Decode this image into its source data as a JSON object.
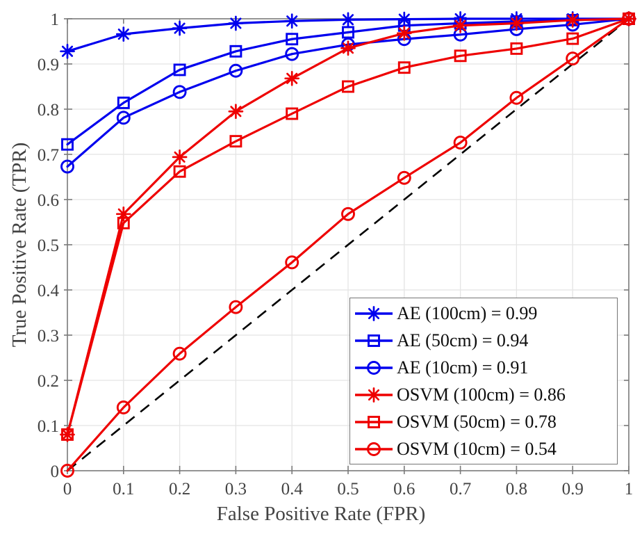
{
  "chart_data": {
    "type": "line",
    "title": "",
    "xlabel": "False Positive Rate (FPR)",
    "ylabel": "True Positive Rate (TPR)",
    "xlim": [
      0,
      1
    ],
    "ylim": [
      0,
      1
    ],
    "grid": true,
    "legend_position": "lower-right",
    "x": [
      0,
      0.1,
      0.2,
      0.3,
      0.4,
      0.5,
      0.6,
      0.7,
      0.8,
      0.9,
      1.0
    ],
    "x_tick_labels": [
      "0",
      "0.1",
      "0.2",
      "0.3",
      "0.4",
      "0.5",
      "0.6",
      "0.7",
      "0.8",
      "0.9",
      "1"
    ],
    "y_tick_labels": [
      "0",
      "0.1",
      "0.2",
      "0.3",
      "0.4",
      "0.5",
      "0.6",
      "0.7",
      "0.8",
      "0.9",
      "1"
    ],
    "series": [
      {
        "name": "AE (100cm) = 0.99",
        "auc": 0.99,
        "color": "#0000ee",
        "marker": "asterisk",
        "values": [
          0.928,
          0.966,
          0.979,
          0.99,
          0.995,
          0.998,
          0.999,
          1.0,
          1.0,
          1.0,
          1.0
        ]
      },
      {
        "name": "AE (50cm) = 0.94",
        "auc": 0.94,
        "color": "#0000ee",
        "marker": "square",
        "values": [
          0.722,
          0.814,
          0.887,
          0.928,
          0.955,
          0.97,
          0.985,
          0.99,
          0.994,
          0.997,
          1.0
        ]
      },
      {
        "name": "AE (10cm) = 0.91",
        "auc": 0.91,
        "color": "#0000ee",
        "marker": "circle",
        "values": [
          0.673,
          0.781,
          0.838,
          0.885,
          0.922,
          0.943,
          0.955,
          0.965,
          0.977,
          0.987,
          1.0
        ]
      },
      {
        "name": "OSVM (100cm) = 0.86",
        "auc": 0.86,
        "color": "#ee0000",
        "marker": "asterisk",
        "values": [
          0.08,
          0.568,
          0.694,
          0.795,
          0.868,
          0.935,
          0.968,
          0.985,
          0.99,
          0.997,
          1.0
        ]
      },
      {
        "name": "OSVM (50cm) = 0.78",
        "auc": 0.78,
        "color": "#ee0000",
        "marker": "square",
        "values": [
          0.08,
          0.548,
          0.662,
          0.729,
          0.79,
          0.85,
          0.892,
          0.918,
          0.934,
          0.956,
          1.0
        ]
      },
      {
        "name": "OSVM (10cm) = 0.54",
        "auc": 0.54,
        "color": "#ee0000",
        "marker": "circle",
        "values": [
          0.0,
          0.14,
          0.259,
          0.362,
          0.461,
          0.568,
          0.648,
          0.726,
          0.825,
          0.912,
          1.0
        ]
      }
    ],
    "reference_line": {
      "type": "diagonal",
      "style": "dashed",
      "color": "#000000",
      "from": [
        0,
        0
      ],
      "to": [
        1,
        1
      ]
    }
  },
  "colors": {
    "blue_series": "#0000ee",
    "red_series": "#ee0000",
    "grid": "#e4e4e4",
    "axis_box": "#7a7a7a",
    "tick_text": "#434343",
    "reference": "#000000",
    "legend_border": "#757575",
    "legend_text": "#0d0d0d",
    "background": "#ffffff"
  }
}
